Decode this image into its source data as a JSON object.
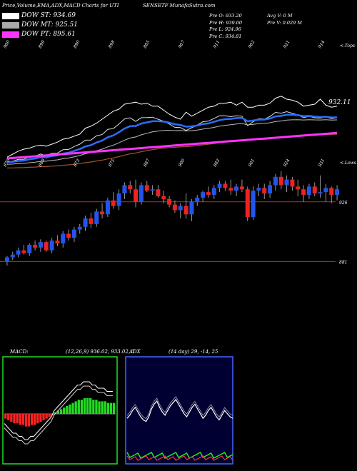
{
  "header": {
    "title": "Price,Volume,EMA,ADX,MACD Charts for UTI",
    "subtitle": "SENSETF MunafaSutra.com"
  },
  "legend": [
    {
      "label": "DOW ST: 934.69",
      "color": "#ffffff"
    },
    {
      "label": "DOW MT: 925.51",
      "color": "#aaaaaa"
    },
    {
      "label": "DOW PT: 895.61",
      "color": "#ff33ff"
    }
  ],
  "quote": {
    "prev_open": "Pre  O: 933.20",
    "prev_high": "Pre  H: 939.00",
    "prev_low": "Pre  L: 924.96",
    "prev_close": "Pre  C: 934.81",
    "avg_vol": "Avg V: 0  M",
    "prev_vol": "Pre  V: 0.029 M"
  },
  "price_labels": {
    "top_right": "<-Tops",
    "bottom_right": "<-Lows",
    "ema_last": "932.11",
    "level_926": "926",
    "level_881": "881"
  },
  "top_ticks": [
    "900",
    "899",
    "890",
    "898",
    "885",
    "907",
    "911",
    "902",
    "921",
    "914"
  ],
  "low_ticks": [
    "870",
    "869",
    "873",
    "875",
    "887",
    "900",
    "883",
    "901",
    "924",
    "931"
  ],
  "colors": {
    "up_candle": "#2255ee",
    "down_candle": "#ee2222",
    "ema_blue": "#2a6dff",
    "ema_pink": "#ff33ff",
    "ema_brown": "#a0522d",
    "macd_green": "#22dd22",
    "macd_red": "#ff2222",
    "adx_bg": "#000033",
    "adx_border": "#4466ff",
    "hline": "#aa3333"
  },
  "macd": {
    "label": "MACD:",
    "params": "(12,26,9) 936.02,  933.02,  3"
  },
  "adx": {
    "label": "ADX",
    "params": "(14 day) 29,  -14,  25"
  },
  "chart_data": {
    "type": "candlestick",
    "ohlc": [
      [
        883,
        887,
        880,
        886
      ],
      [
        886,
        890,
        884,
        888
      ],
      [
        888,
        893,
        886,
        891
      ],
      [
        891,
        895,
        888,
        889
      ],
      [
        889,
        896,
        887,
        895
      ],
      [
        895,
        898,
        891,
        893
      ],
      [
        893,
        899,
        890,
        897
      ],
      [
        897,
        898,
        890,
        891
      ],
      [
        891,
        900,
        889,
        898
      ],
      [
        898,
        902,
        894,
        896
      ],
      [
        896,
        905,
        893,
        903
      ],
      [
        903,
        906,
        898,
        900
      ],
      [
        900,
        908,
        897,
        906
      ],
      [
        906,
        910,
        903,
        908
      ],
      [
        908,
        916,
        905,
        914
      ],
      [
        914,
        918,
        907,
        910
      ],
      [
        910,
        921,
        908,
        919
      ],
      [
        919,
        925,
        914,
        917
      ],
      [
        917,
        929,
        915,
        927
      ],
      [
        927,
        933,
        921,
        923
      ],
      [
        923,
        935,
        920,
        932
      ],
      [
        932,
        940,
        928,
        938
      ],
      [
        938,
        941,
        932,
        935
      ],
      [
        935,
        942,
        922,
        926
      ],
      [
        926,
        940,
        924,
        938
      ],
      [
        938,
        941,
        933,
        934
      ],
      [
        934,
        938,
        931,
        935
      ],
      [
        935,
        938,
        929,
        930
      ],
      [
        930,
        934,
        925,
        928
      ],
      [
        928,
        930,
        922,
        924
      ],
      [
        924,
        927,
        918,
        920
      ],
      [
        920,
        925,
        914,
        923
      ],
      [
        923,
        932,
        914,
        917
      ],
      [
        917,
        928,
        912,
        926
      ],
      [
        926,
        931,
        923,
        929
      ],
      [
        929,
        934,
        926,
        933
      ],
      [
        933,
        937,
        929,
        931
      ],
      [
        931,
        938,
        928,
        936
      ],
      [
        936,
        941,
        933,
        939
      ],
      [
        939,
        941,
        934,
        936
      ],
      [
        936,
        942,
        931,
        934
      ],
      [
        934,
        939,
        930,
        937
      ],
      [
        937,
        942,
        933,
        935
      ],
      [
        935,
        937,
        912,
        915
      ],
      [
        915,
        937,
        913,
        934
      ],
      [
        934,
        939,
        930,
        936
      ],
      [
        936,
        939,
        928,
        932
      ],
      [
        932,
        941,
        929,
        938
      ],
      [
        938,
        946,
        934,
        944
      ],
      [
        944,
        948,
        935,
        938
      ],
      [
        938,
        945,
        933,
        942
      ],
      [
        942,
        944,
        934,
        937
      ],
      [
        937,
        942,
        930,
        935
      ],
      [
        935,
        938,
        926,
        931
      ],
      [
        931,
        939,
        928,
        937
      ],
      [
        937,
        940,
        930,
        932
      ],
      [
        932,
        945,
        929,
        933
      ],
      [
        933,
        939,
        926,
        936
      ],
      [
        936,
        937,
        925,
        931
      ],
      [
        931,
        938,
        927,
        935
      ]
    ],
    "macd_hist": [
      -3,
      -4,
      -5,
      -6,
      -6,
      -7,
      -7,
      -8,
      -8,
      -7,
      -7,
      -6,
      -5,
      -4,
      -3,
      -2,
      -1,
      1,
      2,
      3,
      4,
      5,
      6,
      7,
      8,
      9,
      9,
      10,
      10,
      10,
      9,
      9,
      8,
      8,
      8,
      7,
      7,
      7
    ],
    "adx_values": [
      29,
      31,
      34,
      36,
      33,
      30,
      28,
      27,
      30,
      35,
      38,
      40,
      36,
      33,
      31,
      34,
      37,
      39,
      41,
      38,
      35,
      32,
      30,
      33,
      36,
      38,
      35,
      32,
      29,
      31,
      34,
      36,
      33,
      30,
      28,
      31,
      34,
      32,
      30,
      29
    ],
    "xlabel": "",
    "ylabel": ""
  }
}
